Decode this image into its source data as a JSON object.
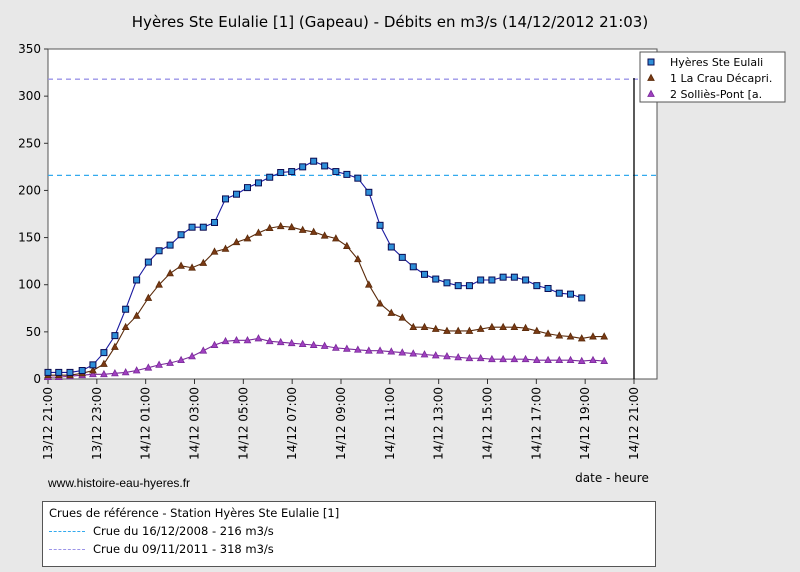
{
  "title": "Hyères Ste Eulalie [1] (Gapeau) - Débits en m3/s (14/12/2012 21:03)",
  "website": "www.histoire-eau-hyeres.fr",
  "references": {
    "title": "Crues de référence - Station Hyères Ste Eulalie [1]",
    "items": [
      {
        "label": "Crue du 16/12/2008 - 216 m3/s",
        "value": 216,
        "color": "#33aaee"
      },
      {
        "label": "Crue du 09/11/2011 - 318 m3/s",
        "value": 318,
        "color": "#9b94e8"
      }
    ]
  },
  "chart_data": {
    "type": "line",
    "title": "Hyères Ste Eulalie [1] (Gapeau) - Débits en m3/s (14/12/2012 21:03)",
    "xlabel": "date - heure",
    "ylabel": "",
    "ylim": [
      0,
      350
    ],
    "xlim": [
      0,
      24
    ],
    "grid": false,
    "legend_position": "top-right",
    "y_ticks": [
      0,
      50,
      100,
      150,
      200,
      250,
      300,
      350
    ],
    "x_ticks": [
      {
        "x": 0,
        "label": "13/12 21:00"
      },
      {
        "x": 2,
        "label": "13/12 23:00"
      },
      {
        "x": 4,
        "label": "14/12 01:00"
      },
      {
        "x": 6,
        "label": "14/12 03:00"
      },
      {
        "x": 8,
        "label": "14/12 05:00"
      },
      {
        "x": 10,
        "label": "14/12 07:00"
      },
      {
        "x": 12,
        "label": "14/12 09:00"
      },
      {
        "x": 14,
        "label": "14/12 11:00"
      },
      {
        "x": 16,
        "label": "14/12 13:00"
      },
      {
        "x": 18,
        "label": "14/12 15:00"
      },
      {
        "x": 20,
        "label": "14/12 17:00"
      },
      {
        "x": 22,
        "label": "14/12 19:00"
      },
      {
        "x": 24,
        "label": "14/12 21:00"
      }
    ],
    "reference_lines": [
      {
        "value": 216,
        "color": "#33aaee"
      },
      {
        "value": 318,
        "color": "#9b94e8"
      }
    ],
    "series": [
      {
        "name": "Hyères Ste Eulali",
        "color": "#1a1aa0",
        "fill": "#2e8fd8",
        "marker": "square",
        "x": [
          0.0,
          0.44,
          0.9,
          1.4,
          1.84,
          2.29,
          2.74,
          3.18,
          3.63,
          4.11,
          4.55,
          5.0,
          5.45,
          5.9,
          6.36,
          6.82,
          7.27,
          7.72,
          8.17,
          8.62,
          9.08,
          9.53,
          9.98,
          10.43,
          10.88,
          11.33,
          11.79,
          12.24,
          12.69,
          13.14,
          13.6,
          14.06,
          14.51,
          14.96,
          15.42,
          15.88,
          16.34,
          16.8,
          17.26,
          17.72,
          18.18,
          18.64,
          19.1,
          19.56,
          20.02,
          20.48,
          20.94,
          21.4,
          21.86,
          22.32,
          22.78,
          23.24
        ],
        "y": [
          7,
          7,
          7,
          9,
          15,
          28,
          46,
          74,
          105,
          124,
          136,
          142,
          153,
          161,
          161,
          166,
          191,
          196,
          203,
          208,
          214,
          219,
          220,
          225,
          231,
          226,
          220,
          217,
          213,
          198,
          163,
          140,
          129,
          119,
          111,
          106,
          102,
          99,
          99,
          105,
          105,
          108,
          108,
          105,
          99,
          96,
          91,
          90,
          86,
          null,
          null,
          null
        ]
      },
      {
        "name": "1 La Crau Décapri.",
        "color": "#5a2a0a",
        "fill": "#7a3a14",
        "marker": "triangle",
        "x": [
          0.0,
          0.44,
          0.9,
          1.4,
          1.84,
          2.29,
          2.74,
          3.18,
          3.63,
          4.11,
          4.55,
          5.0,
          5.45,
          5.9,
          6.36,
          6.82,
          7.27,
          7.72,
          8.17,
          8.62,
          9.08,
          9.53,
          9.98,
          10.43,
          10.88,
          11.33,
          11.79,
          12.24,
          12.69,
          13.14,
          13.6,
          14.06,
          14.51,
          14.96,
          15.42,
          15.88,
          16.34,
          16.8,
          17.26,
          17.72,
          18.18,
          18.64,
          19.1,
          19.56,
          20.02,
          20.48,
          20.94,
          21.4,
          21.86,
          22.32,
          22.78,
          23.24
        ],
        "y": [
          4,
          4,
          4,
          6,
          9,
          16,
          34,
          55,
          67,
          86,
          100,
          112,
          120,
          118,
          123,
          135,
          138,
          145,
          149,
          155,
          160,
          162,
          161,
          158,
          156,
          152,
          149,
          141,
          127,
          100,
          80,
          70,
          65,
          55,
          55,
          53,
          51,
          51,
          51,
          53,
          55,
          55,
          55,
          54,
          51,
          48,
          46,
          45,
          43,
          45,
          45,
          null
        ]
      },
      {
        "name": "2 Solliès-Pont [a.",
        "color": "#7a2a9a",
        "fill": "#a040c0",
        "marker": "triangle",
        "x": [
          0.0,
          0.44,
          0.9,
          1.4,
          1.84,
          2.29,
          2.74,
          3.18,
          3.63,
          4.11,
          4.55,
          5.0,
          5.45,
          5.9,
          6.36,
          6.82,
          7.27,
          7.72,
          8.17,
          8.62,
          9.08,
          9.53,
          9.98,
          10.43,
          10.88,
          11.33,
          11.79,
          12.24,
          12.69,
          13.14,
          13.6,
          14.06,
          14.51,
          14.96,
          15.42,
          15.88,
          16.34,
          16.8,
          17.26,
          17.72,
          18.18,
          18.64,
          19.1,
          19.56,
          20.02,
          20.48,
          20.94,
          21.4,
          21.86,
          22.32,
          22.78,
          23.24
        ],
        "y": [
          2,
          2,
          3,
          4,
          5,
          5,
          6,
          7,
          9,
          12,
          15,
          17,
          20,
          24,
          30,
          36,
          40,
          41,
          41,
          43,
          40,
          39,
          38,
          37,
          36,
          35,
          33,
          32,
          31,
          30,
          30,
          29,
          28,
          27,
          26,
          25,
          24,
          23,
          22,
          22,
          21,
          21,
          21,
          21,
          20,
          20,
          20,
          20,
          19,
          20,
          19,
          null
        ]
      }
    ]
  }
}
